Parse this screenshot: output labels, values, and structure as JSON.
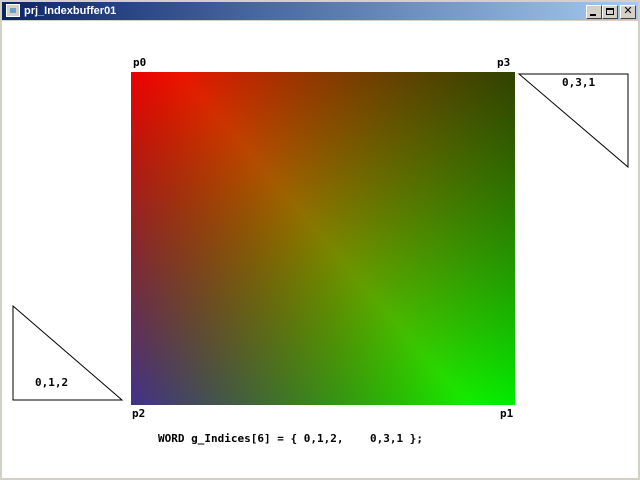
{
  "window": {
    "title": "prj_Indexbuffer01",
    "minimize_icon": "minimize-icon",
    "maximize_icon": "maximize-icon",
    "close_icon": "close-icon"
  },
  "quad": {
    "vertices": {
      "p0": "p0",
      "p1": "p1",
      "p2": "p2",
      "p3": "p3"
    },
    "vertex_colors": {
      "p0": "#ff0000",
      "p1": "#00ff00",
      "p2": "#0000ff",
      "p3": "#000000"
    }
  },
  "triangles": [
    {
      "label": "0,3,1"
    },
    {
      "label": "0,1,2"
    }
  ],
  "code": {
    "declaration": "WORD g_Indices[6] = {",
    "first": "0,1,2,",
    "second": "0,3,1",
    "end": "};"
  }
}
